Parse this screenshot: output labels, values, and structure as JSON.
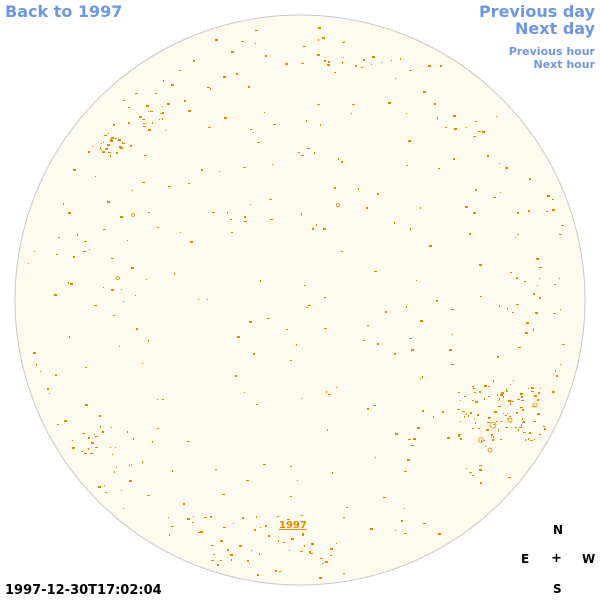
{
  "nav": {
    "back": "Back to 1997",
    "previous_day": "Previous day",
    "next_day": "Next day",
    "previous_hour": "Previous hour",
    "next_hour": "Next hour"
  },
  "compass": {
    "n": "N",
    "e": "E",
    "center": "+",
    "w": "W",
    "s": "S"
  },
  "timestamp": "1997-12-30T17:02:04",
  "year_label": "1997",
  "colors": {
    "link": "#6f97e0",
    "disk_fill": "#fffaee",
    "disk_stroke": "#c8c8c8",
    "feature": "#e08a00"
  }
}
